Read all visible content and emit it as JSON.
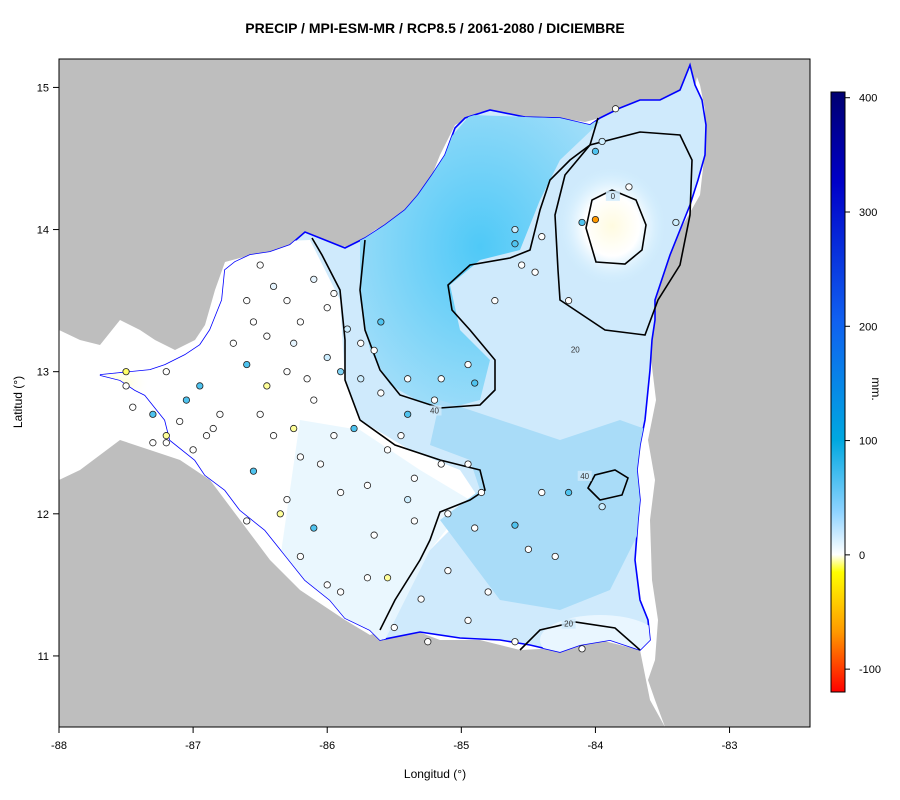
{
  "title": "PRECIP / MPI-ESM-MR / RCP8.5 / 2061-2080 / DICIEMBRE",
  "xlabel": "Longitud (°)",
  "ylabel": "Latitud (°)",
  "colorbar_unit": "mm.",
  "chart_data": {
    "type": "heatmap",
    "title": "PRECIP / MPI-ESM-MR / RCP8.5 / 2061-2080 / DICIEMBRE",
    "xlabel": "Longitud (°)",
    "ylabel": "Latitud (°)",
    "xlim": [
      -88,
      -82.4
    ],
    "ylim": [
      10.5,
      15.2
    ],
    "x_ticks": [
      "-88",
      "-87",
      "-86",
      "-85",
      "-84",
      "-83"
    ],
    "y_ticks": [
      "11",
      "12",
      "13",
      "14",
      "15"
    ],
    "colorbar": {
      "min": -120,
      "max": 405,
      "ticks": [
        "-100",
        "0",
        "100",
        "200",
        "300",
        "400"
      ],
      "colors": [
        "#ff0000",
        "#ff9900",
        "#ffff00",
        "#ffffff",
        "#8fd3ff",
        "#00a8e0",
        "#1060f0",
        "#0000c8",
        "#000070"
      ]
    },
    "contour_labels": [
      {
        "label": "0",
        "lon": -83.87,
        "lat": 14.23
      },
      {
        "label": "20",
        "lon": -84.15,
        "lat": 13.15
      },
      {
        "label": "40",
        "lon": -85.2,
        "lat": 12.72
      },
      {
        "label": "40",
        "lon": -84.08,
        "lat": 12.26
      },
      {
        "label": "20",
        "lon": -84.2,
        "lat": 11.22
      }
    ],
    "stations": [
      {
        "lon": -86.5,
        "lat": 13.75,
        "color": "#ffffff"
      },
      {
        "lon": -86.4,
        "lat": 13.6,
        "color": "#e6f5ff"
      },
      {
        "lon": -86.3,
        "lat": 13.5,
        "color": "#ffffff"
      },
      {
        "lon": -86.1,
        "lat": 13.65,
        "color": "#e6f5ff"
      },
      {
        "lon": -86.0,
        "lat": 13.45,
        "color": "#ffffff"
      },
      {
        "lon": -85.85,
        "lat": 13.3,
        "color": "#cdeeff"
      },
      {
        "lon": -86.55,
        "lat": 13.35,
        "color": "#ffffff"
      },
      {
        "lon": -86.7,
        "lat": 13.2,
        "color": "#ffffff"
      },
      {
        "lon": -86.25,
        "lat": 13.2,
        "color": "#e6f5ff"
      },
      {
        "lon": -86.0,
        "lat": 13.1,
        "color": "#cdeeff"
      },
      {
        "lon": -85.9,
        "lat": 13.0,
        "color": "#7fd3f5"
      },
      {
        "lon": -86.15,
        "lat": 12.95,
        "color": "#ffffff"
      },
      {
        "lon": -86.45,
        "lat": 12.9,
        "color": "#ffff99"
      },
      {
        "lon": -86.6,
        "lat": 13.05,
        "color": "#4fc3ef"
      },
      {
        "lon": -86.8,
        "lat": 12.7,
        "color": "#ffffff"
      },
      {
        "lon": -86.9,
        "lat": 12.55,
        "color": "#ffffff"
      },
      {
        "lon": -87.1,
        "lat": 12.65,
        "color": "#ffffff"
      },
      {
        "lon": -87.2,
        "lat": 12.5,
        "color": "#ffffff"
      },
      {
        "lon": -86.25,
        "lat": 12.6,
        "color": "#ffff99"
      },
      {
        "lon": -85.95,
        "lat": 12.55,
        "color": "#ffffff"
      },
      {
        "lon": -85.8,
        "lat": 12.6,
        "color": "#4fc3ef"
      },
      {
        "lon": -85.75,
        "lat": 12.95,
        "color": "#cdeeff"
      },
      {
        "lon": -85.6,
        "lat": 12.85,
        "color": "#ffffff"
      },
      {
        "lon": -85.4,
        "lat": 12.7,
        "color": "#4fc3ef"
      },
      {
        "lon": -85.6,
        "lat": 13.35,
        "color": "#4fc3ef"
      },
      {
        "lon": -85.4,
        "lat": 12.95,
        "color": "#ffffff"
      },
      {
        "lon": -85.2,
        "lat": 12.8,
        "color": "#ffffff"
      },
      {
        "lon": -84.9,
        "lat": 12.92,
        "color": "#4fc3ef"
      },
      {
        "lon": -85.15,
        "lat": 12.35,
        "color": "#ffffff"
      },
      {
        "lon": -84.95,
        "lat": 12.35,
        "color": "#ffffff"
      },
      {
        "lon": -85.35,
        "lat": 12.25,
        "color": "#ffffff"
      },
      {
        "lon": -85.4,
        "lat": 12.1,
        "color": "#cdeeff"
      },
      {
        "lon": -85.1,
        "lat": 12.0,
        "color": "#ffffff"
      },
      {
        "lon": -84.9,
        "lat": 11.9,
        "color": "#ffffff"
      },
      {
        "lon": -84.85,
        "lat": 12.15,
        "color": "#ffffff"
      },
      {
        "lon": -84.6,
        "lat": 11.92,
        "color": "#4fc3ef"
      },
      {
        "lon": -84.4,
        "lat": 12.15,
        "color": "#ffffff"
      },
      {
        "lon": -84.2,
        "lat": 12.15,
        "color": "#4fc3ef"
      },
      {
        "lon": -84.5,
        "lat": 11.75,
        "color": "#ffffff"
      },
      {
        "lon": -84.3,
        "lat": 11.7,
        "color": "#ffffff"
      },
      {
        "lon": -84.8,
        "lat": 11.45,
        "color": "#ffffff"
      },
      {
        "lon": -84.95,
        "lat": 11.25,
        "color": "#ffffff"
      },
      {
        "lon": -84.6,
        "lat": 11.1,
        "color": "#ffffff"
      },
      {
        "lon": -84.1,
        "lat": 11.05,
        "color": "#ffffff"
      },
      {
        "lon": -85.5,
        "lat": 11.2,
        "color": "#ffffff"
      },
      {
        "lon": -85.25,
        "lat": 11.1,
        "color": "#ffffff"
      },
      {
        "lon": -85.55,
        "lat": 11.55,
        "color": "#ffff99"
      },
      {
        "lon": -85.7,
        "lat": 11.55,
        "color": "#ffffff"
      },
      {
        "lon": -85.9,
        "lat": 11.45,
        "color": "#ffffff"
      },
      {
        "lon": -86.0,
        "lat": 11.5,
        "color": "#ffffff"
      },
      {
        "lon": -86.2,
        "lat": 11.7,
        "color": "#ffffff"
      },
      {
        "lon": -86.1,
        "lat": 11.9,
        "color": "#4fc3ef"
      },
      {
        "lon": -86.3,
        "lat": 12.1,
        "color": "#ffffff"
      },
      {
        "lon": -86.35,
        "lat": 12.0,
        "color": "#ffff99"
      },
      {
        "lon": -86.55,
        "lat": 12.3,
        "color": "#4fc3ef"
      },
      {
        "lon": -86.6,
        "lat": 11.95,
        "color": "#ffffff"
      },
      {
        "lon": -86.85,
        "lat": 12.6,
        "color": "#ffffff"
      },
      {
        "lon": -87.05,
        "lat": 12.8,
        "color": "#4fc3ef"
      },
      {
        "lon": -87.3,
        "lat": 12.7,
        "color": "#4fc3ef"
      },
      {
        "lon": -87.5,
        "lat": 13.0,
        "color": "#ffff66"
      },
      {
        "lon": -87.5,
        "lat": 12.9,
        "color": "#ffffff"
      },
      {
        "lon": -87.2,
        "lat": 13.0,
        "color": "#ffffff"
      },
      {
        "lon": -87.45,
        "lat": 12.75,
        "color": "#ffffff"
      },
      {
        "lon": -86.95,
        "lat": 12.9,
        "color": "#4fc3ef"
      },
      {
        "lon": -87.0,
        "lat": 12.45,
        "color": "#ffffff"
      },
      {
        "lon": -87.2,
        "lat": 12.55,
        "color": "#ffff99"
      },
      {
        "lon": -87.3,
        "lat": 12.5,
        "color": "#ffffff"
      },
      {
        "lon": -85.65,
        "lat": 11.85,
        "color": "#ffffff"
      },
      {
        "lon": -85.7,
        "lat": 12.2,
        "color": "#ffffff"
      },
      {
        "lon": -85.55,
        "lat": 12.45,
        "color": "#ffffff"
      },
      {
        "lon": -85.45,
        "lat": 12.55,
        "color": "#ffffff"
      },
      {
        "lon": -85.9,
        "lat": 12.15,
        "color": "#ffffff"
      },
      {
        "lon": -86.05,
        "lat": 12.35,
        "color": "#ffffff"
      },
      {
        "lon": -86.2,
        "lat": 12.4,
        "color": "#ffffff"
      },
      {
        "lon": -86.4,
        "lat": 12.55,
        "color": "#ffffff"
      },
      {
        "lon": -85.1,
        "lat": 11.6,
        "color": "#ffffff"
      },
      {
        "lon": -85.35,
        "lat": 11.95,
        "color": "#ffffff"
      },
      {
        "lon": -84.55,
        "lat": 13.75,
        "color": "#ffffff"
      },
      {
        "lon": -84.6,
        "lat": 14.0,
        "color": "#cdeeff"
      },
      {
        "lon": -84.6,
        "lat": 13.9,
        "color": "#4fc3ef"
      },
      {
        "lon": -84.4,
        "lat": 13.95,
        "color": "#ffffff"
      },
      {
        "lon": -84.45,
        "lat": 13.7,
        "color": "#ffffff"
      },
      {
        "lon": -84.75,
        "lat": 13.5,
        "color": "#ffffff"
      },
      {
        "lon": -84.2,
        "lat": 13.5,
        "color": "#ffffff"
      },
      {
        "lon": -84.1,
        "lat": 14.05,
        "color": "#4fc3ef"
      },
      {
        "lon": -84.0,
        "lat": 14.07,
        "color": "#ff9900"
      },
      {
        "lon": -83.75,
        "lat": 14.3,
        "color": "#ffffff"
      },
      {
        "lon": -83.4,
        "lat": 14.05,
        "color": "#cdeeff"
      },
      {
        "lon": -84.0,
        "lat": 14.55,
        "color": "#4fc3ef"
      },
      {
        "lon": -83.95,
        "lat": 14.62,
        "color": "#cdeeff"
      },
      {
        "lon": -83.85,
        "lat": 14.85,
        "color": "#ffffff"
      },
      {
        "lon": -84.95,
        "lat": 13.05,
        "color": "#ffffff"
      },
      {
        "lon": -85.15,
        "lat": 12.95,
        "color": "#ffffff"
      },
      {
        "lon": -83.95,
        "lat": 12.05,
        "color": "#cdeeff"
      },
      {
        "lon": -85.3,
        "lat": 11.4,
        "color": "#ffffff"
      },
      {
        "lon": -86.3,
        "lat": 13.0,
        "color": "#ffffff"
      },
      {
        "lon": -86.1,
        "lat": 12.8,
        "color": "#ffffff"
      },
      {
        "lon": -86.5,
        "lat": 12.7,
        "color": "#ffffff"
      },
      {
        "lon": -85.75,
        "lat": 13.2,
        "color": "#ffffff"
      },
      {
        "lon": -85.65,
        "lat": 13.15,
        "color": "#ffffff"
      },
      {
        "lon": -85.95,
        "lat": 13.55,
        "color": "#ffffff"
      },
      {
        "lon": -86.2,
        "lat": 13.35,
        "color": "#ffffff"
      },
      {
        "lon": -86.6,
        "lat": 13.5,
        "color": "#ffffff"
      },
      {
        "lon": -86.45,
        "lat": 13.25,
        "color": "#ffffff"
      }
    ]
  }
}
